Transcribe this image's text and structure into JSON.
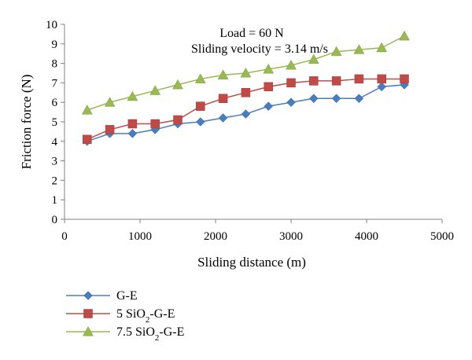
{
  "chart_data": {
    "type": "line",
    "title": "",
    "xlabel": "Sliding distance (m)",
    "ylabel": "Friction force (N)",
    "xlim": [
      0,
      5000
    ],
    "ylim": [
      0,
      10
    ],
    "xticks": [
      0,
      1000,
      2000,
      3000,
      4000,
      5000
    ],
    "yticks": [
      0,
      1,
      2,
      3,
      4,
      5,
      6,
      7,
      8,
      9,
      10
    ],
    "grid": false,
    "legend_position": "bottom-left",
    "annotations": [
      "Load = 60 N",
      "Sliding velocity = 3.14 m/s"
    ],
    "x": [
      300,
      600,
      900,
      1200,
      1500,
      1800,
      2100,
      2400,
      2700,
      3000,
      3300,
      3600,
      3900,
      4200,
      4500
    ],
    "series": [
      {
        "name": "G-E",
        "name_parts": [
          "G-E"
        ],
        "marker": "diamond",
        "color": "#4a7ebb",
        "values": [
          4.0,
          4.4,
          4.4,
          4.6,
          4.9,
          5.0,
          5.2,
          5.4,
          5.8,
          6.0,
          6.2,
          6.2,
          6.2,
          6.8,
          6.9
        ]
      },
      {
        "name": "5 SiO2-G-E",
        "name_parts": [
          "5 SiO",
          "2",
          "-G-E"
        ],
        "marker": "square",
        "color": "#be4b48",
        "values": [
          4.1,
          4.6,
          4.9,
          4.9,
          5.1,
          5.8,
          6.2,
          6.5,
          6.8,
          7.0,
          7.1,
          7.1,
          7.2,
          7.2,
          7.2
        ]
      },
      {
        "name": "7.5 SiO2-G-E",
        "name_parts": [
          "7.5 SiO",
          "2",
          "-G-E"
        ],
        "marker": "triangle",
        "color": "#98b954",
        "values": [
          5.6,
          6.0,
          6.3,
          6.6,
          6.9,
          7.2,
          7.4,
          7.5,
          7.7,
          7.9,
          8.2,
          8.6,
          8.7,
          8.8,
          9.4
        ]
      }
    ]
  }
}
